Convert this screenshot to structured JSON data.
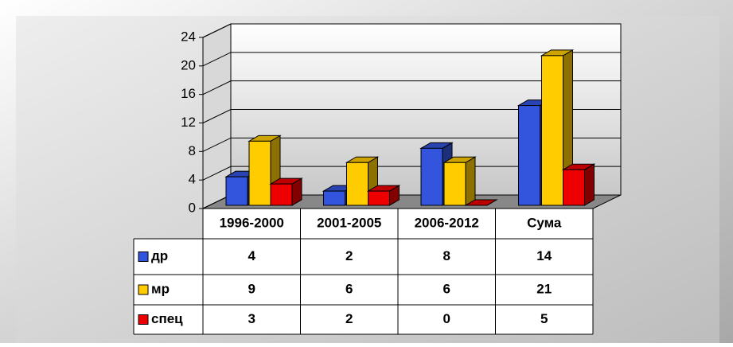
{
  "chart_data": {
    "type": "bar3d",
    "categories": [
      "1996-2000",
      "2001-2005",
      "2006-2012",
      "Сума"
    ],
    "series": [
      {
        "name": "др",
        "color": "#3355dd",
        "values": [
          4,
          2,
          8,
          14
        ]
      },
      {
        "name": "мр",
        "color": "#ffcc00",
        "values": [
          9,
          6,
          6,
          21
        ]
      },
      {
        "name": "спец",
        "color": "#ee0000",
        "values": [
          3,
          2,
          0,
          5
        ]
      }
    ],
    "ylim": [
      0,
      24
    ],
    "yticks": [
      0,
      4,
      8,
      12,
      16,
      20,
      24
    ],
    "grid": true,
    "data_table": true
  }
}
